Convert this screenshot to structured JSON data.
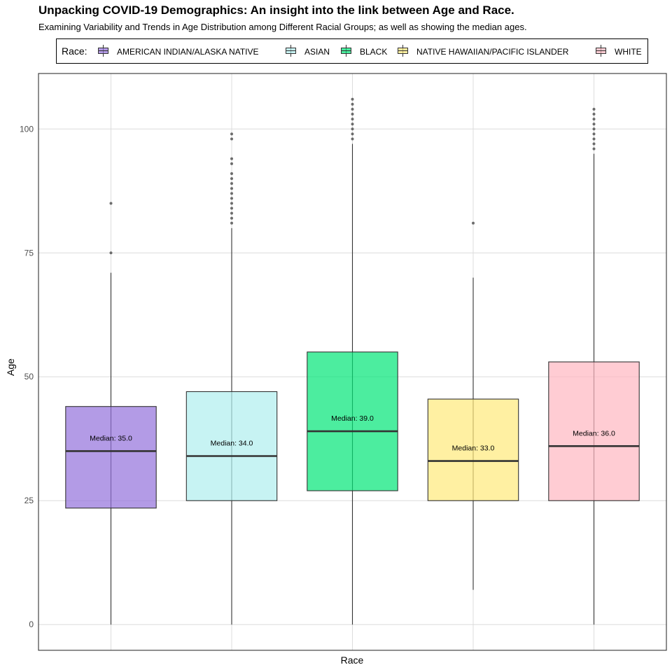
{
  "chart_data": {
    "type": "box",
    "title": "Unpacking COVID-19 Demographics: An insight into the link between Age and Race.",
    "subtitle": "Examining Variability and Trends in Age Distribution among Different Racial Groups; as well as showing the median ages.",
    "xlabel": "Race",
    "ylabel": "Age",
    "ylim": [
      -5.2,
      111.2
    ],
    "y_ticks": [
      0,
      25,
      50,
      75,
      100
    ],
    "y_tick_labels": [
      "0",
      "25",
      "50",
      "75",
      "100"
    ],
    "grid": true,
    "legend": {
      "title": "Race:",
      "position": "top"
    },
    "series": [
      {
        "name": "AMERICAN INDIAN/ALASKA NATIVE",
        "color": "#9370db",
        "whisker_low": 0,
        "q1": 23.5,
        "median": 35,
        "q3": 44,
        "whisker_high": 71,
        "outliers": [
          75,
          85
        ],
        "median_label": "Median: 35.0"
      },
      {
        "name": "ASIAN",
        "color": "#afeeee",
        "whisker_low": 0,
        "q1": 25,
        "median": 34,
        "q3": 47,
        "whisker_high": 80,
        "outliers": [
          81,
          82,
          83,
          84,
          85,
          86,
          87,
          88,
          89,
          90,
          91,
          93,
          94,
          98,
          99
        ],
        "median_label": "Median: 34.0"
      },
      {
        "name": "BLACK",
        "color": "#00e676",
        "whisker_low": 0,
        "q1": 27,
        "median": 39,
        "q3": 55,
        "whisker_high": 97,
        "outliers": [
          98,
          99,
          100,
          101,
          102,
          103,
          104,
          105,
          106
        ],
        "median_label": "Median: 39.0"
      },
      {
        "name": "NATIVE HAWAIIAN/PACIFIC ISLANDER",
        "color": "#ffe97a",
        "whisker_low": 7,
        "q1": 25,
        "median": 33,
        "q3": 45.5,
        "whisker_high": 70,
        "outliers": [
          81
        ],
        "median_label": "Median: 33.0"
      },
      {
        "name": "WHITE",
        "color": "#ffb6c1",
        "whisker_low": 0,
        "q1": 25,
        "median": 36,
        "q3": 53,
        "whisker_high": 95,
        "outliers": [
          96,
          97,
          98,
          99,
          100,
          101,
          102,
          103,
          104
        ],
        "median_label": "Median: 36.0"
      }
    ]
  }
}
